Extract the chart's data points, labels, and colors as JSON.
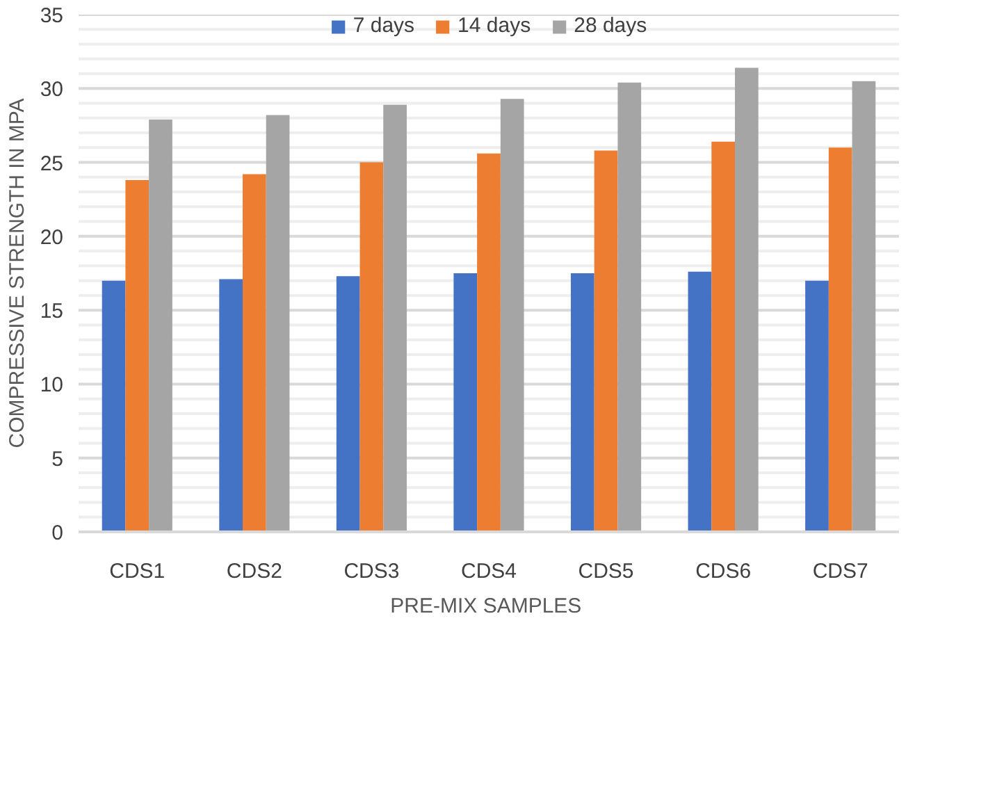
{
  "chart_data": {
    "type": "bar",
    "xlabel": "PRE-MIX  SAMPLES",
    "ylabel": "COMPRESSIVE STRENGTH IN MPA",
    "categories": [
      "CDS1",
      "CDS2",
      "CDS3",
      "CDS4",
      "CDS5",
      "CDS6",
      "CDS7"
    ],
    "series": [
      {
        "name": "7 days",
        "color": "#4472c4",
        "values": [
          17.0,
          17.1,
          17.3,
          17.5,
          17.5,
          17.6,
          17.0
        ]
      },
      {
        "name": "14 days",
        "color": "#ed7d31",
        "values": [
          23.8,
          24.2,
          25.0,
          25.6,
          25.8,
          26.4,
          26.0
        ]
      },
      {
        "name": "28 days",
        "color": "#a5a5a5",
        "values": [
          27.9,
          28.2,
          28.9,
          29.3,
          30.4,
          31.4,
          30.5
        ]
      }
    ],
    "ylim": [
      0,
      35
    ],
    "yticks": [
      0,
      {
        "value": 1,
        "label": null
      },
      {
        "value": 2,
        "label": null
      },
      {
        "value": 3,
        "label": null
      },
      {
        "value": 4,
        "label": null
      },
      5,
      {
        "value": 6,
        "label": null
      },
      {
        "value": 7,
        "label": null
      },
      {
        "value": 8,
        "label": null
      },
      {
        "value": 9,
        "label": null
      },
      10,
      {
        "value": 11,
        "label": null
      },
      {
        "value": 12,
        "label": null
      },
      {
        "value": 13,
        "label": null
      },
      {
        "value": 14,
        "label": null
      },
      15,
      {
        "value": 16,
        "label": null
      },
      {
        "value": 17,
        "label": null
      },
      {
        "value": 18,
        "label": null
      },
      {
        "value": 19,
        "label": null
      },
      20,
      {
        "value": 21,
        "label": null
      },
      {
        "value": 22,
        "label": null
      },
      {
        "value": 23,
        "label": null
      },
      {
        "value": 24,
        "label": null
      },
      25,
      {
        "value": 26,
        "label": null
      },
      {
        "value": 27,
        "label": null
      },
      {
        "value": 28,
        "label": null
      },
      {
        "value": 29,
        "label": null
      },
      30,
      {
        "value": 31,
        "label": null
      },
      {
        "value": 32,
        "label": null
      },
      {
        "value": 33,
        "label": null
      },
      {
        "value": 34,
        "label": null
      },
      35
    ],
    "grid": "y",
    "legend": "top"
  }
}
